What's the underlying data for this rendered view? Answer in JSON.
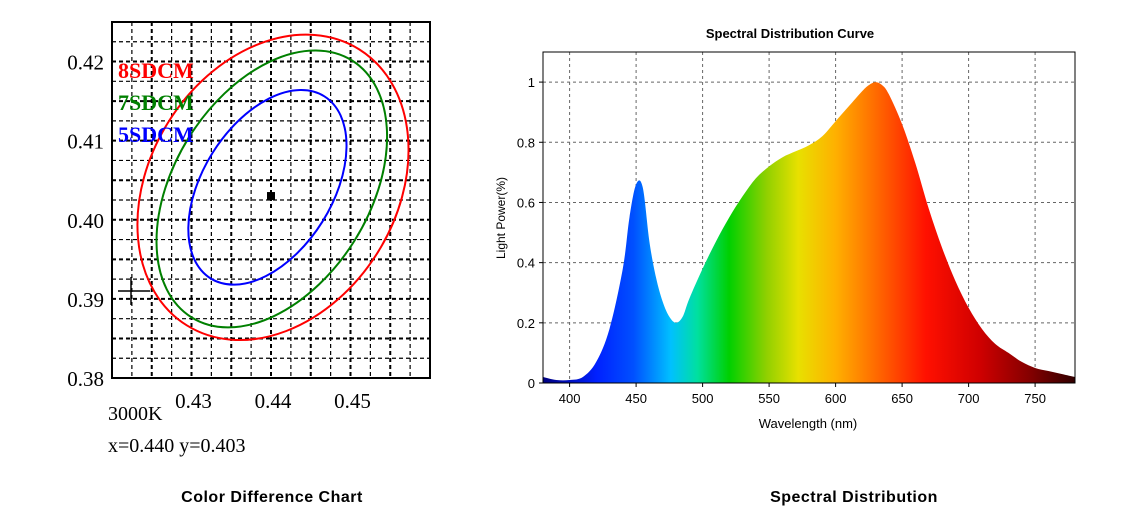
{
  "chart_data": [
    {
      "type": "scatter",
      "title": "",
      "caption": "Color Difference Chart",
      "xlabel": "",
      "ylabel": "",
      "xlim": [
        0.42,
        0.46
      ],
      "ylim": [
        0.38,
        0.425
      ],
      "x_ticks": [
        "0.43",
        "0.44",
        "0.45"
      ],
      "y_ticks": [
        "0.42",
        "0.41",
        "0.40",
        "0.39",
        "0.38"
      ],
      "grid": true,
      "legend_position": "top-left",
      "ellipses": [
        {
          "name": "8SDCM",
          "color": "#ff0000",
          "center": [
            0.44,
            0.404
          ],
          "x_range": [
            0.4232,
            0.4573
          ],
          "y_range": [
            0.3848,
            0.4234
          ]
        },
        {
          "name": "7SDCM",
          "color": "#008000",
          "center": [
            0.44,
            0.404
          ],
          "x_range": [
            0.4256,
            0.4546
          ],
          "y_range": [
            0.3864,
            0.4214
          ]
        },
        {
          "name": "5SDCM",
          "color": "#0000ff",
          "center": [
            0.44,
            0.404
          ],
          "x_range": [
            0.4296,
            0.4495
          ],
          "y_range": [
            0.3918,
            0.4164
          ]
        }
      ],
      "point": {
        "x": 0.44,
        "y": 0.403
      },
      "annotations": {
        "cct": "3000K",
        "coords": "x=0.440   y=0.403"
      }
    },
    {
      "type": "area",
      "title": "Spectral Distribution Curve",
      "caption": "Spectral Distribution",
      "xlabel": "Wavelength  (nm)",
      "ylabel": "Light Power(%)",
      "xlim": [
        380,
        780
      ],
      "ylim": [
        0,
        1.1
      ],
      "x_ticks": [
        "400",
        "450",
        "500",
        "550",
        "600",
        "650",
        "700",
        "750"
      ],
      "y_ticks": [
        "1",
        "0.8",
        "0.6",
        "0.4",
        "0.2",
        "0"
      ],
      "grid": true,
      "x": [
        380,
        390,
        400,
        410,
        420,
        430,
        440,
        445,
        450,
        455,
        460,
        465,
        470,
        475,
        480,
        485,
        490,
        500,
        510,
        520,
        530,
        540,
        550,
        560,
        570,
        580,
        590,
        600,
        610,
        620,
        625,
        630,
        635,
        640,
        650,
        660,
        670,
        680,
        690,
        700,
        710,
        720,
        730,
        740,
        750,
        760,
        770,
        780
      ],
      "y": [
        0.02,
        0.01,
        0.01,
        0.02,
        0.07,
        0.18,
        0.38,
        0.55,
        0.66,
        0.65,
        0.47,
        0.35,
        0.27,
        0.22,
        0.2,
        0.22,
        0.28,
        0.38,
        0.47,
        0.55,
        0.62,
        0.68,
        0.72,
        0.75,
        0.77,
        0.79,
        0.82,
        0.87,
        0.92,
        0.97,
        0.99,
        1.0,
        0.99,
        0.96,
        0.86,
        0.73,
        0.58,
        0.45,
        0.34,
        0.25,
        0.18,
        0.13,
        0.1,
        0.07,
        0.05,
        0.04,
        0.03,
        0.02
      ]
    }
  ]
}
